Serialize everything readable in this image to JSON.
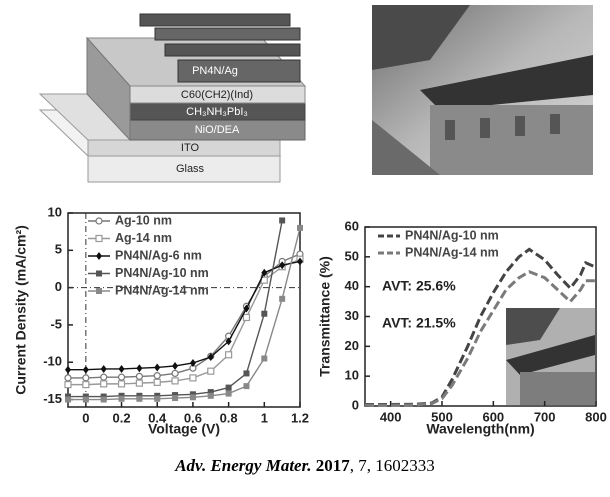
{
  "diagram": {
    "layers": [
      "PN4N/Ag",
      "C60(CH2)(Ind)",
      "CH₃NH₃PbI₃",
      "NiO/DEA",
      "ITO",
      "Glass"
    ]
  },
  "chart_data": [
    {
      "type": "line",
      "xlabel": "Voltage (V)",
      "ylabel": "Current Density (mA/cm²)",
      "x": [
        -0.1,
        0,
        0.1,
        0.2,
        0.3,
        0.4,
        0.5,
        0.6,
        0.7,
        0.8,
        0.9,
        1.0,
        1.1,
        1.2
      ],
      "series": [
        {
          "name": "Ag-10 nm",
          "color": "#777777",
          "marker": "circle-open",
          "values": [
            -12.1,
            -12.1,
            -12.0,
            -12.0,
            -11.9,
            -11.8,
            -11.5,
            -10.8,
            -9.2,
            -6.5,
            -2.5,
            1.5,
            3.5,
            4.5
          ]
        },
        {
          "name": "Ag-14 nm",
          "color": "#999999",
          "marker": "square-open",
          "values": [
            -13.0,
            -13.0,
            -12.9,
            -12.9,
            -12.8,
            -12.7,
            -12.5,
            -12.1,
            -11.2,
            -9.0,
            -4.0,
            1.0,
            2.8,
            3.8
          ]
        },
        {
          "name": "PN4N/Ag-6 nm",
          "color": "#111111",
          "marker": "diamond",
          "values": [
            -11.0,
            -11.0,
            -10.9,
            -10.9,
            -10.8,
            -10.7,
            -10.5,
            -10.1,
            -9.3,
            -7.2,
            -2.8,
            2.0,
            3.0,
            3.5
          ]
        },
        {
          "name": "PN4N/Ag-10 nm",
          "color": "#555555",
          "marker": "square",
          "values": [
            -14.6,
            -14.6,
            -14.6,
            -14.5,
            -14.5,
            -14.5,
            -14.4,
            -14.3,
            -14.0,
            -13.4,
            -11.5,
            -3.5,
            9.0,
            null
          ]
        },
        {
          "name": "PN4N/Ag-14 nm",
          "color": "#888888",
          "marker": "square",
          "values": [
            -15.0,
            -15.0,
            -15.0,
            -14.9,
            -14.9,
            -14.9,
            -14.8,
            -14.7,
            -14.5,
            -14.2,
            -13.2,
            -9.5,
            -1.5,
            8.0
          ]
        }
      ],
      "xlim": [
        -0.1,
        1.2
      ],
      "xticks": [
        0,
        0.2,
        0.4,
        0.6,
        0.8,
        1,
        1.2
      ],
      "ylim": [
        -16,
        10
      ],
      "yticks": [
        -15,
        -10,
        -5,
        0,
        5,
        10
      ],
      "reference_x": 0,
      "reference_y": 0
    },
    {
      "type": "line",
      "xlabel": "Wavelength(nm)",
      "ylabel": "Transmittance (%)",
      "x": [
        350,
        400,
        450,
        480,
        500,
        520,
        550,
        575,
        600,
        625,
        650,
        670,
        700,
        725,
        750,
        770,
        780,
        800
      ],
      "series": [
        {
          "name": "PN4N/Ag-10 nm",
          "color": "#444444",
          "values": [
            0.5,
            0.5,
            0.6,
            1,
            3,
            9,
            20,
            30,
            38,
            45,
            50,
            52.5,
            49,
            44,
            39.5,
            44,
            48,
            46.5
          ]
        },
        {
          "name": "PN4N/Ag-14 nm",
          "color": "#7a7a7a",
          "values": [
            0.3,
            0.3,
            0.4,
            0.8,
            2.5,
            7,
            16,
            25,
            32,
            39,
            43,
            45,
            43,
            39,
            35,
            39,
            42,
            42
          ]
        }
      ],
      "xlim": [
        350,
        800
      ],
      "xticks": [
        400,
        500,
        600,
        700,
        800
      ],
      "ylim": [
        0,
        60
      ],
      "yticks": [
        0,
        10,
        20,
        30,
        40,
        50,
        60
      ],
      "annotations": [
        "AVT: 25.6%",
        "AVT: 21.5%"
      ]
    }
  ],
  "citation": {
    "journal": "Adv. Energy Mater.",
    "year": "2017",
    "rest": ", 7, 1602333"
  }
}
